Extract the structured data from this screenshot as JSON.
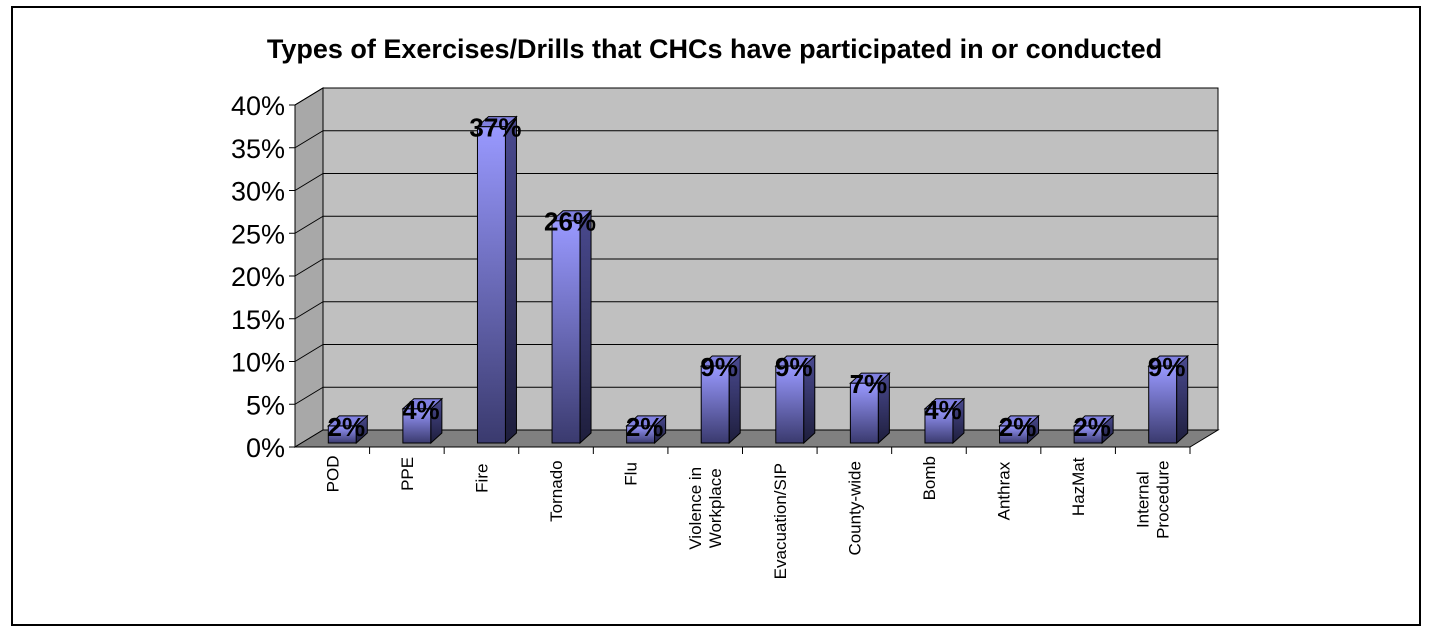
{
  "chart_data": {
    "type": "bar",
    "title": "Types of Exercises/Drills that CHCs have participated in or conducted",
    "xlabel": "",
    "ylabel": "",
    "categories": [
      "POD",
      "PPE",
      "Fire",
      "Tornado",
      "Flu",
      "Violence in Workplace",
      "Evacuation/SIP",
      "County-wide",
      "Bomb",
      "Anthrax",
      "HazMat",
      "Internal Procedure"
    ],
    "category_lines": [
      [
        "POD"
      ],
      [
        "PPE"
      ],
      [
        "Fire"
      ],
      [
        "Tornado"
      ],
      [
        "Flu"
      ],
      [
        "Violence in",
        "Workplace"
      ],
      [
        "Evacuation/SIP"
      ],
      [
        "County-wide"
      ],
      [
        "Bomb"
      ],
      [
        "Anthrax"
      ],
      [
        "HazMat"
      ],
      [
        "Internal",
        "Procedure"
      ]
    ],
    "values": [
      2,
      4,
      37,
      26,
      2,
      9,
      9,
      7,
      4,
      2,
      2,
      9
    ],
    "data_labels": [
      "2%",
      "4%",
      "37%",
      "26%",
      "2%",
      "9%",
      "9%",
      "7%",
      "4%",
      "2%",
      "2%",
      "9%"
    ],
    "ylim": [
      0,
      40
    ],
    "yticks": [
      0,
      5,
      10,
      15,
      20,
      25,
      30,
      35,
      40
    ],
    "ytick_labels": [
      "0%",
      "5%",
      "10%",
      "15%",
      "20%",
      "25%",
      "30%",
      "35%",
      "40%"
    ],
    "grid": true,
    "legend": "none",
    "colors": {
      "wall": "#c0c0c0",
      "floor": "#808080",
      "bar_top": "#9999ff",
      "bar_bottom": "#3a3a6e",
      "bar_side": "#2e2e58",
      "bar_cap": "#8080e0",
      "gridline": "#000000"
    }
  }
}
